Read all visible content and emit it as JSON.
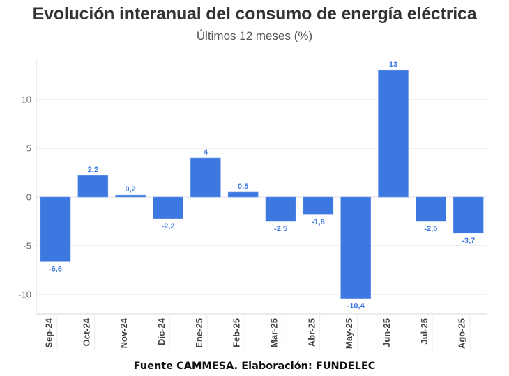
{
  "title": "Evolución interanual del consumo de energía eléctrica",
  "subtitle": "Últimos 12 meses (%)",
  "footer": "Fuente CAMMESA. Elaboración: FUNDELEC",
  "colors": {
    "bar": "#3c78e0",
    "grid": "#ebebeb",
    "label": "#3c78e0"
  },
  "chart_data": {
    "type": "bar",
    "title": "Evolución interanual del consumo de energía eléctrica",
    "subtitle": "Últimos 12 meses (%)",
    "xlabel": "",
    "ylabel": "",
    "categories": [
      "Sep-24",
      "Oct-24",
      "Nov-24",
      "Dic-24",
      "Ene-25",
      "Feb-25",
      "Mar-25",
      "Abr-25",
      "May-25",
      "Jun-25",
      "Jul-25",
      "Ago-25"
    ],
    "values": [
      -6.6,
      2.2,
      0.2,
      -2.2,
      4,
      0.5,
      -2.5,
      -1.8,
      -10.4,
      13,
      -2.5,
      -3.7
    ],
    "value_labels": [
      "-6,6",
      "2,2",
      "0,2",
      "-2,2",
      "4",
      "0,5",
      "-2,5",
      "-1,8",
      "-10,4",
      "13",
      "-2,5",
      "-3,7"
    ],
    "ylim": [
      -12,
      14
    ],
    "yticks": [
      -10,
      -5,
      0,
      5,
      10
    ],
    "ytick_labels": [
      "-10",
      "-5",
      "0",
      "5",
      "10"
    ],
    "grid": true,
    "legend": "none"
  }
}
